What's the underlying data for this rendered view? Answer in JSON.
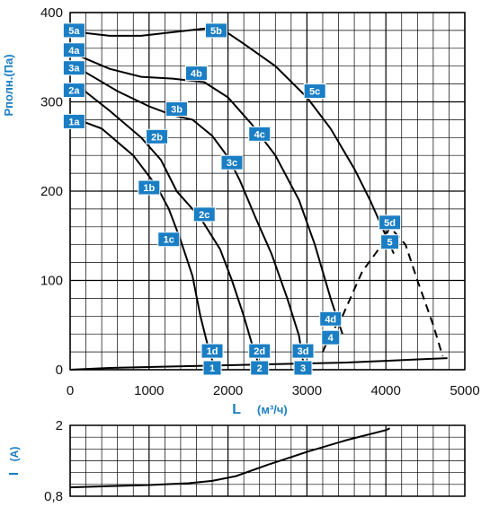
{
  "chart_data": [
    {
      "type": "line",
      "title": "",
      "ylabel": "Pполн.(Па)",
      "xlabel_main": "L",
      "xlabel_unit": "(м³/ч)",
      "xlim": [
        0,
        5000
      ],
      "ylim": [
        0,
        400
      ],
      "x_ticks": [
        0,
        1000,
        2000,
        3000,
        4000,
        5000
      ],
      "x_tick_labels": [
        "0",
        "1000",
        "2000",
        "3000",
        "4000",
        "5000"
      ],
      "y_ticks": [
        0,
        100,
        200,
        300,
        400
      ],
      "y_tick_labels": [
        "0",
        "100",
        "200",
        "300",
        "400"
      ],
      "grid": true,
      "series": [
        {
          "name": "1",
          "points": [
            [
              100,
              280
            ],
            [
              400,
              270
            ],
            [
              800,
              240
            ],
            [
              1100,
              205
            ],
            [
              1250,
              180
            ],
            [
              1400,
              145
            ],
            [
              1550,
              105
            ],
            [
              1650,
              60
            ],
            [
              1750,
              25
            ],
            [
              1820,
              5
            ]
          ]
        },
        {
          "name": "2",
          "points": [
            [
              100,
              318
            ],
            [
              500,
              290
            ],
            [
              900,
              260
            ],
            [
              1150,
              235
            ],
            [
              1350,
              200
            ],
            [
              1650,
              170
            ],
            [
              1900,
              135
            ],
            [
              2050,
              100
            ],
            [
              2200,
              60
            ],
            [
              2300,
              30
            ],
            [
              2380,
              8
            ]
          ]
        },
        {
          "name": "3",
          "points": [
            [
              100,
              338
            ],
            [
              600,
              312
            ],
            [
              1000,
              295
            ],
            [
              1300,
              285
            ],
            [
              1550,
              280
            ],
            [
              1800,
              262
            ],
            [
              2000,
              238
            ],
            [
              2150,
              212
            ],
            [
              2350,
              170
            ],
            [
              2550,
              130
            ],
            [
              2750,
              80
            ],
            [
              2900,
              38
            ],
            [
              2950,
              10
            ]
          ]
        },
        {
          "name": "4",
          "points": [
            [
              100,
              352
            ],
            [
              500,
              337
            ],
            [
              900,
              328
            ],
            [
              1300,
              326
            ],
            [
              1700,
              322
            ],
            [
              2000,
              305
            ],
            [
              2300,
              275
            ],
            [
              2600,
              240
            ],
            [
              2900,
              190
            ],
            [
              3100,
              140
            ],
            [
              3300,
              80
            ],
            [
              3450,
              40
            ]
          ]
        },
        {
          "name": "5",
          "points": [
            [
              100,
              378
            ],
            [
              500,
              374
            ],
            [
              900,
              374
            ],
            [
              1300,
              378
            ],
            [
              1700,
              382
            ],
            [
              1950,
              380
            ],
            [
              2200,
              365
            ],
            [
              2600,
              340
            ],
            [
              3000,
              305
            ],
            [
              3300,
              270
            ],
            [
              3600,
              225
            ],
            [
              3800,
              190
            ],
            [
              4000,
              150
            ],
            [
              4100,
              130
            ]
          ]
        }
      ],
      "dashed_segments": [
        {
          "name": "4d-stop",
          "points": [
            [
              3200,
              20
            ],
            [
              3300,
              40
            ],
            [
              3450,
              60
            ]
          ]
        },
        {
          "name": "5-stop",
          "points": [
            [
              3450,
              60
            ],
            [
              3700,
              110
            ],
            [
              3950,
              140
            ],
            [
              4050,
              160
            ],
            [
              4250,
              140
            ],
            [
              4400,
              100
            ],
            [
              4600,
              50
            ],
            [
              4720,
              15
            ]
          ]
        }
      ],
      "system_curve": {
        "name": "system",
        "points": [
          [
            0,
            0
          ],
          [
            500,
            2
          ],
          [
            1000,
            3
          ],
          [
            1500,
            4
          ],
          [
            2000,
            5
          ],
          [
            2500,
            6
          ],
          [
            3000,
            7
          ],
          [
            3500,
            8
          ],
          [
            4000,
            10
          ],
          [
            4500,
            12
          ],
          [
            4780,
            13
          ]
        ]
      },
      "point_labels": [
        {
          "text": "5a",
          "x": 50,
          "y": 380
        },
        {
          "text": "5b",
          "x": 1850,
          "y": 380
        },
        {
          "text": "5c",
          "x": 3100,
          "y": 312
        },
        {
          "text": "5d",
          "x": 4050,
          "y": 165
        },
        {
          "text": "5",
          "x": 4050,
          "y": 143
        },
        {
          "text": "4a",
          "x": 50,
          "y": 358
        },
        {
          "text": "4b",
          "x": 1600,
          "y": 332
        },
        {
          "text": "4c",
          "x": 2400,
          "y": 264
        },
        {
          "text": "4d",
          "x": 3300,
          "y": 57
        },
        {
          "text": "4",
          "x": 3300,
          "y": 36
        },
        {
          "text": "3a",
          "x": 50,
          "y": 338
        },
        {
          "text": "3b",
          "x": 1350,
          "y": 292
        },
        {
          "text": "3c",
          "x": 2050,
          "y": 232
        },
        {
          "text": "3d",
          "x": 2950,
          "y": 21
        },
        {
          "text": "3",
          "x": 2950,
          "y": 2
        },
        {
          "text": "2a",
          "x": 50,
          "y": 313
        },
        {
          "text": "2b",
          "x": 1100,
          "y": 261
        },
        {
          "text": "2c",
          "x": 1700,
          "y": 174
        },
        {
          "text": "2d",
          "x": 2400,
          "y": 21
        },
        {
          "text": "2",
          "x": 2400,
          "y": 2
        },
        {
          "text": "1a",
          "x": 50,
          "y": 278
        },
        {
          "text": "1b",
          "x": 1000,
          "y": 204
        },
        {
          "text": "1c",
          "x": 1250,
          "y": 146
        },
        {
          "text": "1d",
          "x": 1800,
          "y": 21
        },
        {
          "text": "1",
          "x": 1800,
          "y": 2
        }
      ]
    },
    {
      "type": "line",
      "title": "",
      "ylabel_main": "I",
      "ylabel_unit": "(A)",
      "xlim": [
        0,
        5000
      ],
      "ylim": [
        0.8,
        2.0
      ],
      "y_ticks": [
        0.8,
        2.0
      ],
      "y_tick_labels": [
        "0,8",
        "2"
      ],
      "grid": true,
      "series": [
        {
          "name": "current",
          "points": [
            [
              0,
              0.95
            ],
            [
              500,
              0.97
            ],
            [
              1000,
              0.99
            ],
            [
              1500,
              1.02
            ],
            [
              1800,
              1.06
            ],
            [
              2100,
              1.14
            ],
            [
              2500,
              1.33
            ],
            [
              3000,
              1.55
            ],
            [
              3500,
              1.75
            ],
            [
              4000,
              1.92
            ],
            [
              4050,
              1.95
            ]
          ]
        }
      ]
    }
  ],
  "colors": {
    "badge": "#1a7ec4",
    "axis_label": "#1a7ec4",
    "grid": "#000000",
    "curve": "#000000"
  }
}
